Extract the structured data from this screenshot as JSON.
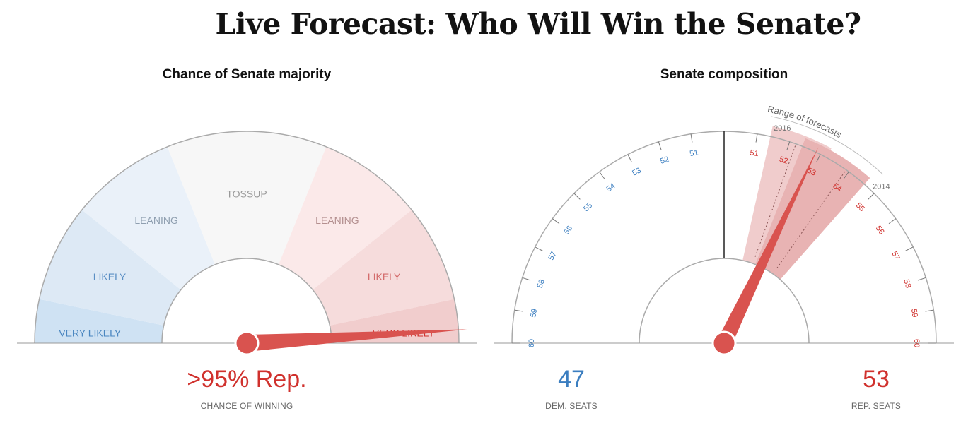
{
  "title": "Live Forecast: Who Will Win the Senate?",
  "majority_panel": {
    "title": "Chance of Senate majority",
    "zones": [
      {
        "label": "VERY LIKELY",
        "fill": "#cfe2f3",
        "text": "#4a86c0"
      },
      {
        "label": "LIKELY",
        "fill": "#dde9f5",
        "text": "#5b8fc4"
      },
      {
        "label": "LEANING",
        "fill": "#eaf1f9",
        "text": "#8f9fb0"
      },
      {
        "label": "TOSSUP",
        "fill": "#f7f7f7",
        "text": "#999999"
      },
      {
        "label": "LEANING",
        "fill": "#fbe9e9",
        "text": "#b49090"
      },
      {
        "label": "LIKELY",
        "fill": "#f6dcdc",
        "text": "#d36b6b"
      },
      {
        "label": "VERY LIKELY",
        "fill": "#f1cdcd",
        "text": "#d0312d"
      }
    ],
    "needle_value": 0.98,
    "value_text": ">95% Rep.",
    "caption": "CHANCE OF WINNING"
  },
  "composition_panel": {
    "title": "Senate composition",
    "ticks_dem": [
      "60",
      "59",
      "58",
      "57",
      "56",
      "55",
      "54",
      "53",
      "52",
      "51"
    ],
    "ticks_rep": [
      "51",
      "52",
      "53",
      "54",
      "55",
      "56",
      "57",
      "58",
      "59",
      "60"
    ],
    "range_label": "Range of forecasts",
    "past_labels": [
      "2016",
      "2014"
    ],
    "needle_rep_seats": 53,
    "dem_value": "47",
    "dem_caption": "DEM. SEATS",
    "rep_value": "53",
    "rep_caption": "REP. SEATS"
  },
  "colors": {
    "dem": "#3b7ec0",
    "rep": "#d0312d",
    "needle": "#d9534f"
  }
}
